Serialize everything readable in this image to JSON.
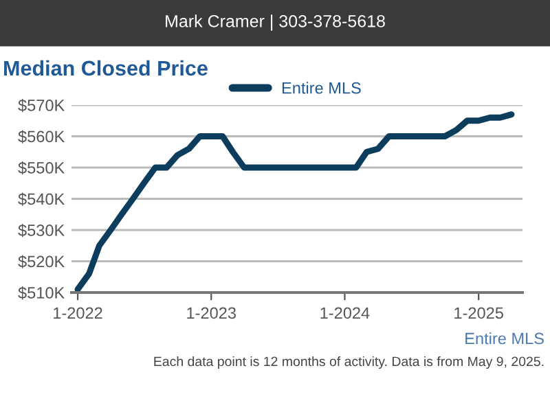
{
  "chart_data": {
    "type": "line",
    "title": "Median Closed Price",
    "subtitle": "Mark Cramer | 303-378-5618",
    "x": [
      "2022-01",
      "2022-02",
      "2022-03",
      "2022-04",
      "2022-05",
      "2022-06",
      "2022-07",
      "2022-08",
      "2022-09",
      "2022-10",
      "2022-11",
      "2022-12",
      "2023-01",
      "2023-02",
      "2023-03",
      "2023-04",
      "2023-05",
      "2023-06",
      "2023-07",
      "2023-08",
      "2023-09",
      "2023-10",
      "2023-11",
      "2023-12",
      "2024-01",
      "2024-02",
      "2024-03",
      "2024-04",
      "2024-05",
      "2024-06",
      "2024-07",
      "2024-08",
      "2024-09",
      "2024-10",
      "2024-11",
      "2024-12",
      "2025-01",
      "2025-02",
      "2025-03",
      "2025-04"
    ],
    "series": [
      {
        "name": "Entire MLS",
        "color": "#0d3d5c",
        "values": [
          511,
          516,
          525,
          530,
          535,
          540,
          545,
          550,
          550,
          554,
          556,
          560,
          560,
          560,
          555,
          550,
          550,
          550,
          550,
          550,
          550,
          550,
          550,
          550,
          550,
          550,
          555,
          556,
          560,
          560,
          560,
          560,
          560,
          560,
          562,
          565,
          565,
          566,
          566,
          567
        ]
      }
    ],
    "xlim": [
      "2021-12-15",
      "2025-05-01"
    ],
    "xticks": [
      {
        "value": "2022-01",
        "label": "1-2022"
      },
      {
        "value": "2023-01",
        "label": "1-2023"
      },
      {
        "value": "2024-01",
        "label": "1-2024"
      },
      {
        "value": "2025-01",
        "label": "1-2025"
      }
    ],
    "ylim": [
      510,
      570
    ],
    "yticks": [
      {
        "value": 510,
        "label": "$510K"
      },
      {
        "value": 520,
        "label": "$520K"
      },
      {
        "value": 530,
        "label": "$530K"
      },
      {
        "value": 540,
        "label": "$540K"
      },
      {
        "value": 550,
        "label": "$550K"
      },
      {
        "value": 560,
        "label": "$560K"
      },
      {
        "value": 570,
        "label": "$570K"
      }
    ],
    "grid": "y",
    "legend": "top",
    "marker": "none",
    "line_style": "solid",
    "annotations": [
      "Entire MLS",
      "Each data point is 12 months of activity. Data is from May 9, 2025."
    ]
  }
}
